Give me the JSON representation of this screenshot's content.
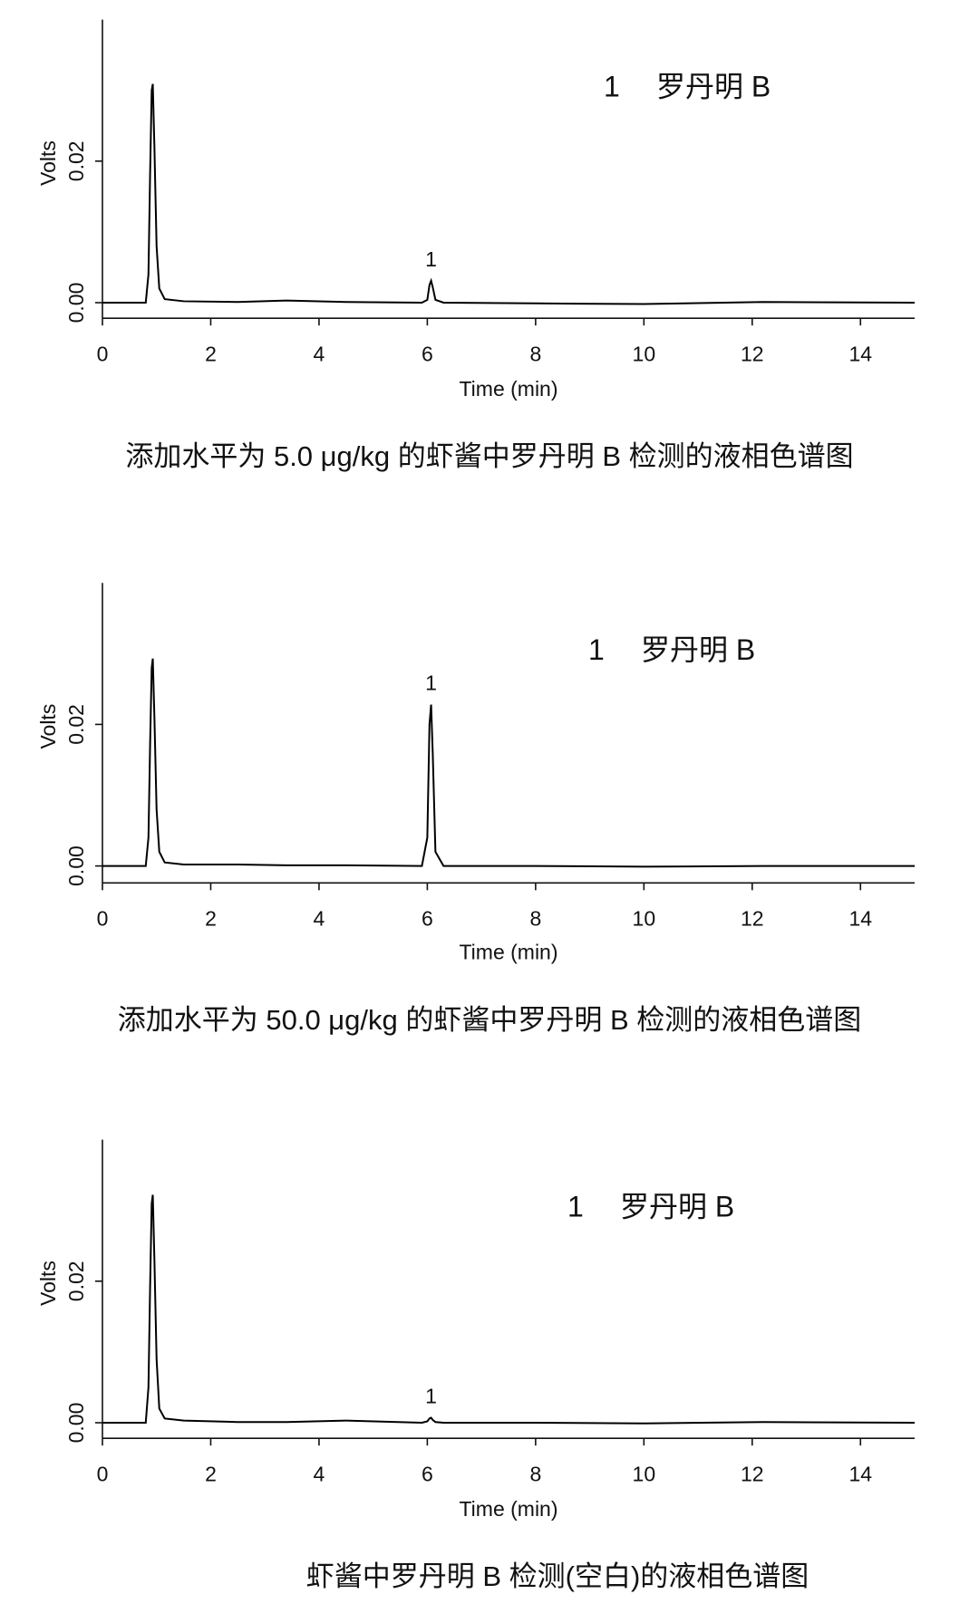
{
  "chart_data": [
    {
      "type": "line",
      "legend_number": "1",
      "legend_text": "罗丹明 B",
      "x_label": "Time (min)",
      "y_label": "Volts",
      "caption": "添加水平为 5.0 μg/kg 的虾酱中罗丹明 B 检测的液相色谱图",
      "annotations": [
        {
          "text": "1",
          "x": 6.07,
          "y": 0.0031
        }
      ],
      "xlim": [
        0,
        15
      ],
      "ylim": [
        -0.0022,
        0.04
      ],
      "xticks": [
        0,
        2,
        4,
        6,
        8,
        10,
        12,
        14
      ],
      "yticks": [
        {
          "value": 0,
          "label": "0.00"
        },
        {
          "value": 0.02,
          "label": "0.02"
        }
      ],
      "x": [
        0,
        0.5,
        0.8,
        0.85,
        0.88,
        0.91,
        0.93,
        0.96,
        1.0,
        1.05,
        1.15,
        1.5,
        2.5,
        3.4,
        4.5,
        5.9,
        6.0,
        6.04,
        6.07,
        6.1,
        6.15,
        6.3,
        8,
        10,
        12.2,
        15
      ],
      "series": [
        {
          "color": "#000000",
          "values": [
            0,
            0,
            0,
            0.004,
            0.018,
            0.03,
            0.0309,
            0.022,
            0.008,
            0.002,
            0.0005,
            0.0002,
            0.0001,
            0.0003,
            0.0001,
            0,
            0.0004,
            0.0025,
            0.0031,
            0.0022,
            0.0004,
            0,
            -0.0001,
            -0.0002,
            0.0001,
            0
          ]
        }
      ]
    },
    {
      "type": "line",
      "legend_number": "1",
      "legend_text": "罗丹明 B",
      "x_label": "Time (min)",
      "y_label": "Volts",
      "caption": "添加水平为 50.0 μg/kg 的虾酱中罗丹明 B 检测的液相色谱图",
      "annotations": [
        {
          "text": "1",
          "x": 6.07,
          "y": 0.0228
        }
      ],
      "xlim": [
        0,
        15
      ],
      "ylim": [
        -0.0024,
        0.04
      ],
      "xticks": [
        0,
        2,
        4,
        6,
        8,
        10,
        12,
        14
      ],
      "yticks": [
        {
          "value": 0,
          "label": "0.00"
        },
        {
          "value": 0.02,
          "label": "0.02"
        }
      ],
      "x": [
        0,
        0.5,
        0.8,
        0.85,
        0.88,
        0.91,
        0.93,
        0.96,
        1.0,
        1.05,
        1.15,
        1.5,
        2.5,
        3.4,
        4.5,
        5.9,
        6.0,
        6.04,
        6.07,
        6.1,
        6.15,
        6.3,
        8,
        10,
        12.2,
        15
      ],
      "series": [
        {
          "color": "#000000",
          "values": [
            0,
            0,
            0,
            0.004,
            0.017,
            0.028,
            0.0293,
            0.021,
            0.008,
            0.002,
            0.0005,
            0.0002,
            0.0002,
            0.0001,
            0.0001,
            0,
            0.004,
            0.02,
            0.0228,
            0.016,
            0.002,
            0,
            0,
            -0.0001,
            0,
            0
          ]
        }
      ]
    },
    {
      "type": "line",
      "legend_number": "1",
      "legend_text": "罗丹明 B",
      "x_label": "Time (min)",
      "y_label": "Volts",
      "caption": "虾酱中罗丹明 B 检测(空白)的液相色谱图",
      "annotations": [
        {
          "text": "1",
          "x": 6.07,
          "y": 0.0007
        }
      ],
      "xlim": [
        0,
        15
      ],
      "ylim": [
        -0.0022,
        0.04
      ],
      "xticks": [
        0,
        2,
        4,
        6,
        8,
        10,
        12,
        14
      ],
      "yticks": [
        {
          "value": 0,
          "label": "0.00"
        },
        {
          "value": 0.02,
          "label": "0.02"
        }
      ],
      "x": [
        0,
        0.5,
        0.8,
        0.85,
        0.88,
        0.91,
        0.93,
        0.96,
        1.0,
        1.05,
        1.15,
        1.5,
        2.5,
        3.4,
        4.5,
        5.9,
        6.0,
        6.04,
        6.07,
        6.1,
        6.15,
        6.3,
        8,
        10,
        12.2,
        15
      ],
      "series": [
        {
          "color": "#000000",
          "values": [
            0,
            0,
            0,
            0.005,
            0.019,
            0.031,
            0.0322,
            0.023,
            0.009,
            0.002,
            0.0006,
            0.0003,
            0.0001,
            0.0001,
            0.0003,
            0,
            0.0002,
            0.0006,
            0.0007,
            0.0004,
            0.0001,
            0,
            0,
            -0.0001,
            0.0001,
            0
          ]
        }
      ]
    }
  ]
}
